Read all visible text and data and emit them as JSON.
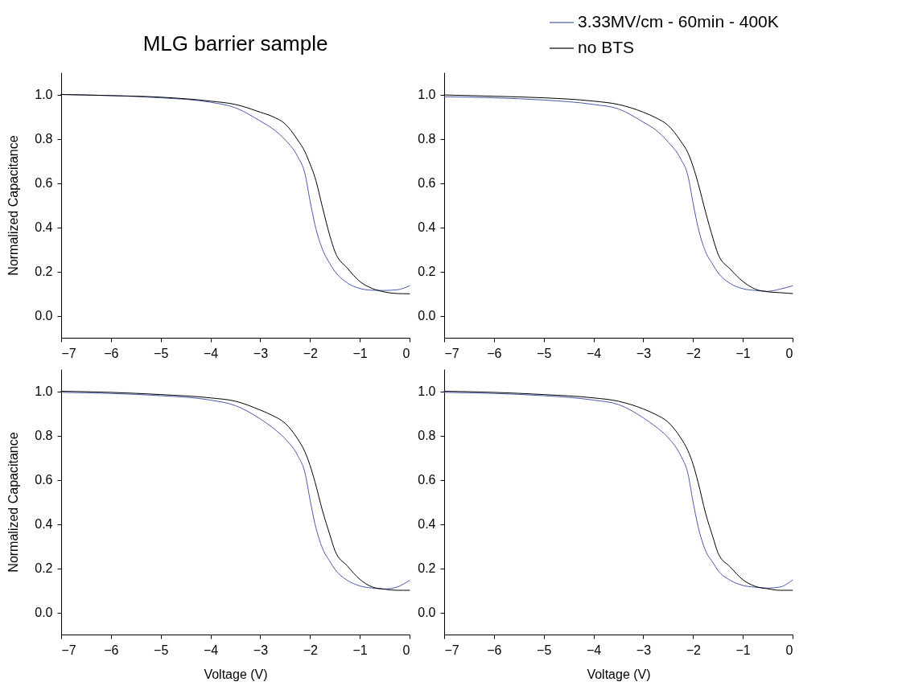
{
  "chart_data": [
    {
      "type": "line",
      "title": "MLG barrier sample",
      "ylabel": "Normalized Capacitance",
      "x": [
        -7,
        -6,
        -5,
        -4,
        -3.5,
        -3,
        -2.75,
        -2.5,
        -2.25,
        -2.1,
        -2,
        -1.9,
        -1.75,
        -1.6,
        -1.5,
        -1.25,
        -1,
        -0.75,
        -0.5,
        -0.25,
        0
      ],
      "series": [
        {
          "color": "#4a5aa8",
          "values": [
            1.0,
            0.995,
            0.985,
            0.965,
            0.94,
            0.88,
            0.845,
            0.795,
            0.72,
            0.64,
            0.52,
            0.41,
            0.3,
            0.235,
            0.2,
            0.148,
            0.123,
            0.115,
            0.114,
            0.117,
            0.135
          ]
        },
        {
          "color": "#000000",
          "values": [
            1.0,
            0.995,
            0.988,
            0.97,
            0.955,
            0.92,
            0.9,
            0.867,
            0.795,
            0.74,
            0.686,
            0.625,
            0.49,
            0.36,
            0.29,
            0.215,
            0.155,
            0.123,
            0.107,
            0.1,
            0.099
          ]
        }
      ],
      "xlim": [
        -7,
        0
      ],
      "xticks": [
        -7,
        -6,
        -5,
        -4,
        -3,
        -2,
        -1,
        0
      ],
      "ylim": [
        -0.1,
        1.1
      ],
      "yticks": [
        {
          "value": 0,
          "label": "0.0"
        },
        {
          "value": 0.2,
          "label": "0.2"
        },
        {
          "value": 0.4,
          "label": "0.4"
        },
        {
          "value": 0.6,
          "label": "0.6"
        },
        {
          "value": 0.8,
          "label": "0.8"
        },
        {
          "value": 1,
          "label": "1.0"
        }
      ],
      "grid": false,
      "legend": false,
      "marker": "none",
      "line_style": "solid"
    },
    {
      "type": "line",
      "x": [
        -7,
        -6,
        -5,
        -4,
        -3.5,
        -3,
        -2.75,
        -2.5,
        -2.25,
        -2.1,
        -2,
        -1.9,
        -1.75,
        -1.6,
        -1.5,
        -1.25,
        -1,
        -0.75,
        -0.5,
        -0.25,
        0
      ],
      "series": [
        {
          "name": "3.33MV/cm - 60min - 400K",
          "color": "#4a5aa8",
          "values": [
            0.99,
            0.985,
            0.975,
            0.955,
            0.935,
            0.875,
            0.84,
            0.785,
            0.71,
            0.63,
            0.51,
            0.4,
            0.29,
            0.23,
            0.195,
            0.145,
            0.122,
            0.114,
            0.11,
            0.12,
            0.135
          ]
        },
        {
          "name": "no BTS",
          "color": "#000000",
          "values": [
            0.998,
            0.992,
            0.985,
            0.97,
            0.955,
            0.92,
            0.895,
            0.86,
            0.79,
            0.735,
            0.675,
            0.6,
            0.47,
            0.35,
            0.28,
            0.21,
            0.155,
            0.12,
            0.108,
            0.104,
            0.1
          ]
        }
      ],
      "xlim": [
        -7,
        0
      ],
      "xticks": [
        -7,
        -6,
        -5,
        -4,
        -3,
        -2,
        -1,
        0
      ],
      "ylim": [
        -0.1,
        1.1
      ],
      "yticks": [
        {
          "value": 0,
          "label": "0.0"
        },
        {
          "value": 0.2,
          "label": "0.2"
        },
        {
          "value": 0.4,
          "label": "0.4"
        },
        {
          "value": 0.6,
          "label": "0.6"
        },
        {
          "value": 0.8,
          "label": "0.8"
        },
        {
          "value": 1,
          "label": "1.0"
        }
      ],
      "grid": false,
      "legend": "top right",
      "marker": "none",
      "line_style": "solid"
    },
    {
      "type": "line",
      "xlabel": "Voltage (V)",
      "ylabel": "Normalized Capacitance",
      "x": [
        -7,
        -6,
        -5,
        -4,
        -3.5,
        -3,
        -2.75,
        -2.5,
        -2.25,
        -2.1,
        -2,
        -1.9,
        -1.75,
        -1.6,
        -1.5,
        -1.25,
        -1,
        -0.75,
        -0.5,
        -0.25,
        0
      ],
      "series": [
        {
          "color": "#4a5aa8",
          "values": [
            0.995,
            0.99,
            0.98,
            0.96,
            0.935,
            0.875,
            0.835,
            0.785,
            0.71,
            0.63,
            0.51,
            0.4,
            0.29,
            0.23,
            0.195,
            0.145,
            0.12,
            0.11,
            0.106,
            0.115,
            0.145
          ]
        },
        {
          "color": "#000000",
          "values": [
            1.0,
            0.995,
            0.985,
            0.97,
            0.955,
            0.915,
            0.89,
            0.855,
            0.785,
            0.725,
            0.665,
            0.59,
            0.46,
            0.35,
            0.28,
            0.21,
            0.15,
            0.115,
            0.105,
            0.1,
            0.1
          ]
        }
      ],
      "xlim": [
        -7,
        0
      ],
      "xticks": [
        -7,
        -6,
        -5,
        -4,
        -3,
        -2,
        -1,
        0
      ],
      "ylim": [
        -0.1,
        1.1
      ],
      "yticks": [
        {
          "value": 0,
          "label": "0.0"
        },
        {
          "value": 0.2,
          "label": "0.2"
        },
        {
          "value": 0.4,
          "label": "0.4"
        },
        {
          "value": 0.6,
          "label": "0.6"
        },
        {
          "value": 0.8,
          "label": "0.8"
        },
        {
          "value": 1,
          "label": "1.0"
        }
      ],
      "grid": false,
      "legend": false,
      "marker": "none",
      "line_style": "solid"
    },
    {
      "type": "line",
      "xlabel": "Voltage (V)",
      "x": [
        -7,
        -6,
        -5,
        -4,
        -3.5,
        -3,
        -2.75,
        -2.5,
        -2.25,
        -2.1,
        -2,
        -1.9,
        -1.75,
        -1.6,
        -1.5,
        -1.25,
        -1,
        -0.75,
        -0.5,
        -0.25,
        0
      ],
      "series": [
        {
          "color": "#4a5aa8",
          "values": [
            0.995,
            0.99,
            0.98,
            0.96,
            0.94,
            0.88,
            0.84,
            0.79,
            0.71,
            0.625,
            0.5,
            0.39,
            0.28,
            0.225,
            0.19,
            0.145,
            0.122,
            0.114,
            0.11,
            0.115,
            0.147
          ]
        },
        {
          "color": "#000000",
          "values": [
            1.0,
            0.995,
            0.985,
            0.97,
            0.955,
            0.92,
            0.895,
            0.86,
            0.79,
            0.73,
            0.67,
            0.59,
            0.45,
            0.34,
            0.27,
            0.205,
            0.148,
            0.118,
            0.107,
            0.1,
            0.1
          ]
        }
      ],
      "xlim": [
        -7,
        0
      ],
      "xticks": [
        -7,
        -6,
        -5,
        -4,
        -3,
        -2,
        -1,
        0
      ],
      "ylim": [
        -0.1,
        1.1
      ],
      "yticks": [
        {
          "value": 0,
          "label": "0.0"
        },
        {
          "value": 0.2,
          "label": "0.2"
        },
        {
          "value": 0.4,
          "label": "0.4"
        },
        {
          "value": 0.6,
          "label": "0.6"
        },
        {
          "value": 0.8,
          "label": "0.8"
        },
        {
          "value": 1,
          "label": "1.0"
        }
      ],
      "grid": false,
      "legend": false,
      "marker": "none",
      "line_style": "solid"
    }
  ]
}
